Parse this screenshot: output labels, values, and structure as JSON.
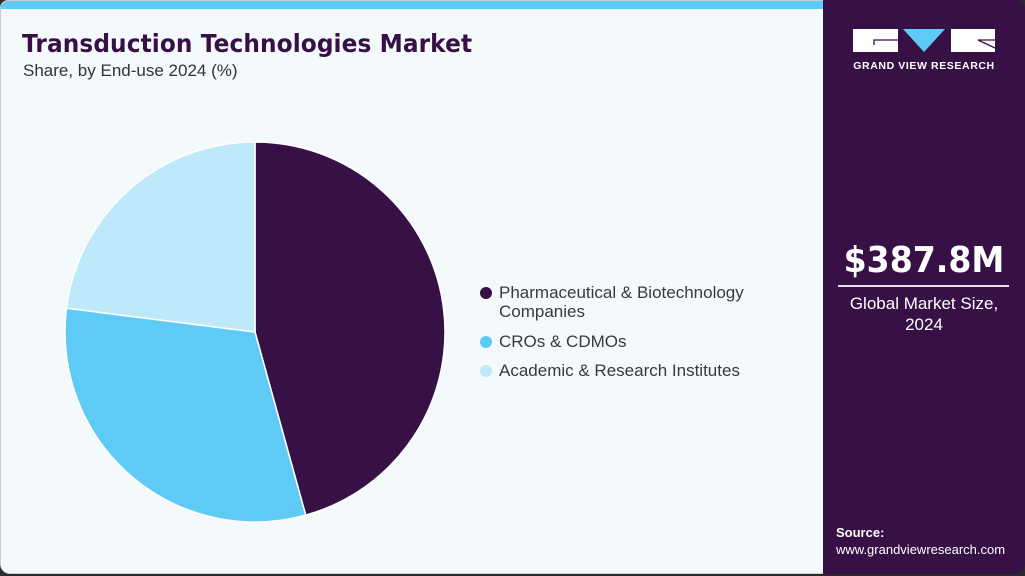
{
  "header": {
    "title": "Transduction Technologies Market",
    "subtitle": "Share, by End-use 2024 (%)"
  },
  "legend": [
    {
      "line1": "Pharmaceutical & Biotechnology",
      "line2": "Companies",
      "color": "#371146"
    },
    {
      "line1": "CROs & CDMOs",
      "line2": "",
      "color": "#5ecbf6"
    },
    {
      "line1": "Academic & Research Institutes",
      "line2": "",
      "color": "#bde9fa"
    }
  ],
  "side_panel": {
    "brand": "GRAND VIEW RESEARCH",
    "market_value": "$387.8M",
    "market_caption_line1": "Global Market Size,",
    "market_caption_line2": "2024",
    "source_label": "Source:",
    "source_url": "www.grandviewresearch.com"
  },
  "colors": {
    "primary": "#371146",
    "accent": "#5ecbf6",
    "light": "#bde9fa",
    "background": "#f4f9fc"
  },
  "chart_data": {
    "type": "pie",
    "title": "Transduction Technologies Market",
    "subtitle": "Share, by End-use 2024 (%)",
    "categories": [
      "Pharmaceutical & Biotechnology Companies",
      "CROs & CDMOs",
      "Academic & Research Institutes"
    ],
    "values": [
      45.7,
      31.3,
      23.0
    ],
    "colors": [
      "#371146",
      "#5ecbf6",
      "#bde9fa"
    ],
    "start_angle_deg": 0,
    "direction": "clockwise",
    "legend_position": "right",
    "data_labels": false
  }
}
